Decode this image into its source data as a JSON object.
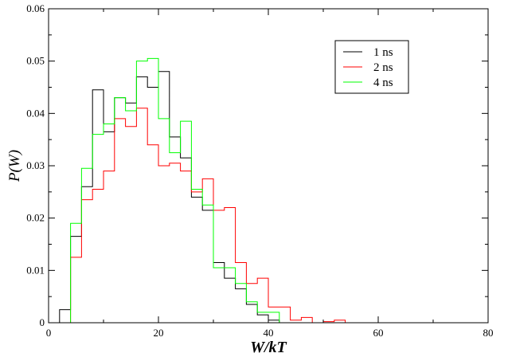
{
  "chart_data": {
    "type": "step",
    "xlabel": "W/kT",
    "ylabel": "P(W)",
    "xlim": [
      0,
      80
    ],
    "ylim": [
      0,
      0.06
    ],
    "xticks": [
      0,
      20,
      40,
      60,
      80
    ],
    "yticks": [
      0,
      0.01,
      0.02,
      0.03,
      0.04,
      0.05,
      0.06
    ],
    "xtick_labels": [
      "0",
      "20",
      "40",
      "60",
      "80"
    ],
    "ytick_labels": [
      "0",
      "0.01",
      "0.02",
      "0.03",
      "0.04",
      "0.05",
      "0.06"
    ],
    "grid": false,
    "legend_position": "top-right",
    "series": [
      {
        "name": "1 ns",
        "color": "#000000",
        "x": [
          2,
          4,
          6,
          8,
          10,
          12,
          14,
          16,
          18,
          20,
          22,
          24,
          26,
          28,
          30,
          32,
          34,
          36,
          38,
          40,
          42
        ],
        "y": [
          0.0025,
          0.0165,
          0.026,
          0.0445,
          0.0365,
          0.043,
          0.042,
          0.047,
          0.045,
          0.048,
          0.0355,
          0.0315,
          0.024,
          0.0215,
          0.0115,
          0.0085,
          0.0065,
          0.0035,
          0.0015,
          0.0005,
          0.0
        ]
      },
      {
        "name": "2 ns",
        "color": "#ff0000",
        "x": [
          2,
          4,
          6,
          8,
          10,
          12,
          14,
          16,
          18,
          20,
          22,
          24,
          26,
          28,
          30,
          32,
          34,
          36,
          38,
          40,
          42,
          44,
          46,
          48,
          50,
          52,
          54
        ],
        "y": [
          0.0,
          0.0125,
          0.0235,
          0.0255,
          0.029,
          0.039,
          0.0375,
          0.041,
          0.034,
          0.03,
          0.0305,
          0.029,
          0.025,
          0.0275,
          0.0215,
          0.022,
          0.0115,
          0.0075,
          0.0085,
          0.003,
          0.003,
          0.0005,
          0.001,
          0.0,
          0.0002,
          0.0005,
          0.0
        ]
      },
      {
        "name": "4 ns",
        "color": "#00ff00",
        "x": [
          2,
          4,
          6,
          8,
          10,
          12,
          14,
          16,
          18,
          20,
          22,
          24,
          26,
          28,
          30,
          32,
          34,
          36,
          38,
          40,
          42
        ],
        "y": [
          0.0,
          0.019,
          0.0295,
          0.036,
          0.038,
          0.043,
          0.0405,
          0.05,
          0.0505,
          0.039,
          0.0325,
          0.0385,
          0.0255,
          0.0225,
          0.0105,
          0.0105,
          0.0075,
          0.004,
          0.002,
          0.002,
          0.0
        ]
      }
    ]
  }
}
